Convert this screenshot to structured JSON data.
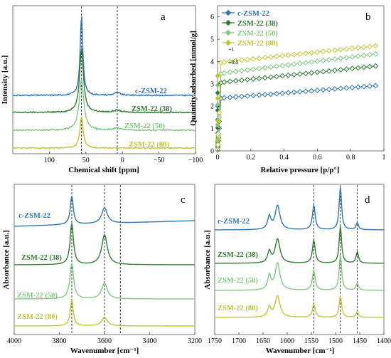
{
  "chart_data": [
    {
      "panel": "a",
      "type": "line",
      "xlabel": "Chemical shift [ppm]",
      "ylabel": "Intensity [a.u.]",
      "xlim": [
        150,
        -100
      ],
      "xticks": [
        "100",
        "50",
        "0",
        "−50",
        "−100"
      ],
      "xtick_values": [
        100,
        50,
        0,
        -50,
        -100
      ],
      "reference_lines": [
        56,
        7
      ],
      "series": [
        {
          "name": "c-ZSM-22",
          "color": "#2e75b6",
          "peaks": [
            {
              "x": 56,
              "height": 112,
              "width": 2.2
            },
            {
              "x": 7,
              "height": 4,
              "width": 5
            }
          ],
          "noise": 0.8
        },
        {
          "name": "ZSM-22 (38)",
          "color": "#2e7d32",
          "peaks": [
            {
              "x": 56,
              "height": 90,
              "width": 3.2
            },
            {
              "x": 7,
              "height": 3,
              "width": 6
            }
          ],
          "noise": 0.8
        },
        {
          "name": "ZSM-22 (50)",
          "color": "#7fc97f",
          "peaks": [
            {
              "x": 56,
              "height": 70,
              "width": 3.8
            },
            {
              "x": 7,
              "height": 3,
              "width": 6
            }
          ],
          "noise": 1.0
        },
        {
          "name": "ZSM-22 (80)",
          "color": "#c0c72e",
          "peaks": [
            {
              "x": 56,
              "height": 44,
              "width": 2.6
            }
          ],
          "noise": 0.8
        }
      ]
    },
    {
      "panel": "b",
      "type": "scatter",
      "xlabel": "Relative pressure [p/p°]",
      "ylabel": "Quantity adsorbed [mmol/g]",
      "xlim": [
        0,
        1
      ],
      "ylim": [
        0,
        6.5
      ],
      "xticks": [
        "0",
        "0.2",
        "0.4",
        "0.6",
        "0.8",
        "1"
      ],
      "yticks": [
        "0",
        "1",
        "2",
        "3",
        "4",
        "5",
        "6"
      ],
      "offset_labels": [
        "+1",
        "+0.5"
      ],
      "series": [
        {
          "name": "c-ZSM-22",
          "color": "#2e75b6",
          "plateau": 2.35,
          "slope": 0.8
        },
        {
          "name": "ZSM-22 (38)",
          "color": "#2e7d32",
          "plateau": 3.05,
          "slope": 1.05
        },
        {
          "name": "ZSM-22 (50)",
          "color": "#7fc97f",
          "plateau": 3.45,
          "slope": 1.25
        },
        {
          "name": "ZSM-22 (80)",
          "color": "#c0c72e",
          "plateau": 3.95,
          "slope": 1.05
        }
      ]
    },
    {
      "panel": "c",
      "type": "line",
      "xlabel": "Wavenumber [cm⁻¹]",
      "ylabel": "Absorbance [a.u.]",
      "xlim": [
        4000,
        3200
      ],
      "xticks": [
        "4000",
        "3800",
        "3600",
        "3400",
        "3200"
      ],
      "xtick_values": [
        4000,
        3800,
        3600,
        3400,
        3200
      ],
      "reference_lines": [
        3745,
        3600,
        3530
      ],
      "series": [
        {
          "name": "c-ZSM-22",
          "color": "#2e75b6",
          "peaks": [
            {
              "x": 3745,
              "height": 40,
              "width": 8
            },
            {
              "x": 3600,
              "height": 22,
              "width": 15
            }
          ],
          "base_slope": 8
        },
        {
          "name": "ZSM-22 (38)",
          "color": "#2e7d32",
          "peaks": [
            {
              "x": 3745,
              "height": 58,
              "width": 9
            },
            {
              "x": 3600,
              "height": 42,
              "width": 15
            }
          ],
          "base_slope": 0
        },
        {
          "name": "ZSM-22 (50)",
          "color": "#7fc97f",
          "peaks": [
            {
              "x": 3745,
              "height": 50,
              "width": 10
            },
            {
              "x": 3600,
              "height": 22,
              "width": 15
            }
          ],
          "base_slope": 0
        },
        {
          "name": "ZSM-22 (80)",
          "color": "#c0c72e",
          "peaks": [
            {
              "x": 3745,
              "height": 36,
              "width": 8
            },
            {
              "x": 3600,
              "height": 12,
              "width": 15
            }
          ],
          "base_slope": 0
        }
      ]
    },
    {
      "panel": "d",
      "type": "line",
      "xlabel": "Wavenumber [cm⁻¹]",
      "ylabel": "Absorbance [a.u.]",
      "xlim": [
        1750,
        1400
      ],
      "xticks": [
        "1750",
        "1700",
        "1650",
        "1600",
        "1550",
        "1500",
        "1450",
        "1400"
      ],
      "xtick_values": [
        1750,
        1700,
        1650,
        1600,
        1550,
        1500,
        1450,
        1400
      ],
      "reference_lines": [
        1545,
        1490,
        1455
      ],
      "series": [
        {
          "name": "c-ZSM-22",
          "color": "#2e75b6",
          "peaks": [
            {
              "x": 1637,
              "height": 18,
              "width": 4
            },
            {
              "x": 1620,
              "height": 34,
              "width": 6
            },
            {
              "x": 1545,
              "height": 34,
              "width": 3.5
            },
            {
              "x": 1490,
              "height": 60,
              "width": 3
            },
            {
              "x": 1455,
              "height": 10,
              "width": 3
            }
          ]
        },
        {
          "name": "ZSM-22 (38)",
          "color": "#2e7d32",
          "peaks": [
            {
              "x": 1637,
              "height": 16,
              "width": 4
            },
            {
              "x": 1620,
              "height": 34,
              "width": 6
            },
            {
              "x": 1545,
              "height": 32,
              "width": 3.5
            },
            {
              "x": 1490,
              "height": 52,
              "width": 3
            },
            {
              "x": 1455,
              "height": 16,
              "width": 3
            }
          ]
        },
        {
          "name": "ZSM-22 (50)",
          "color": "#7fc97f",
          "peaks": [
            {
              "x": 1637,
              "height": 20,
              "width": 4
            },
            {
              "x": 1620,
              "height": 38,
              "width": 6
            },
            {
              "x": 1545,
              "height": 28,
              "width": 3.5
            },
            {
              "x": 1490,
              "height": 50,
              "width": 3
            },
            {
              "x": 1455,
              "height": 10,
              "width": 3
            }
          ]
        },
        {
          "name": "ZSM-22 (80)",
          "color": "#c0c72e",
          "peaks": [
            {
              "x": 1637,
              "height": 14,
              "width": 4
            },
            {
              "x": 1620,
              "height": 30,
              "width": 6
            },
            {
              "x": 1545,
              "height": 18,
              "width": 3.5
            },
            {
              "x": 1490,
              "height": 30,
              "width": 3
            },
            {
              "x": 1455,
              "height": 8,
              "width": 3
            }
          ]
        }
      ]
    }
  ]
}
